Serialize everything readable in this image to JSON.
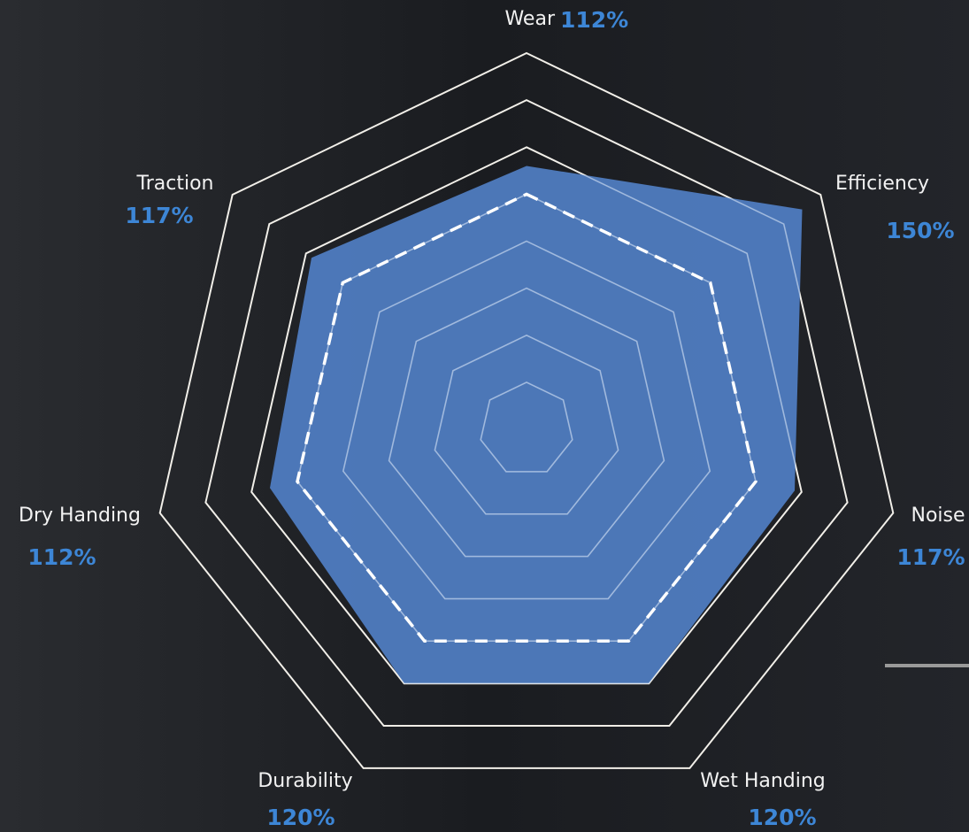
{
  "chart_data": {
    "type": "radar",
    "categories": [
      "Wear",
      "Efficiency",
      "Noise",
      "Wet Handing",
      "Durability",
      "Dry Handing",
      "Traction"
    ],
    "values": [
      112,
      150,
      117,
      120,
      120,
      112,
      117
    ],
    "value_labels": [
      "112%",
      "150%",
      "117%",
      "120%",
      "120%",
      "112%",
      "117%"
    ],
    "color": "#4f7cc0",
    "rlim": [
      0,
      160
    ],
    "rticks": [
      20,
      40,
      60,
      80,
      100,
      120,
      140,
      160
    ],
    "reference": 100
  }
}
